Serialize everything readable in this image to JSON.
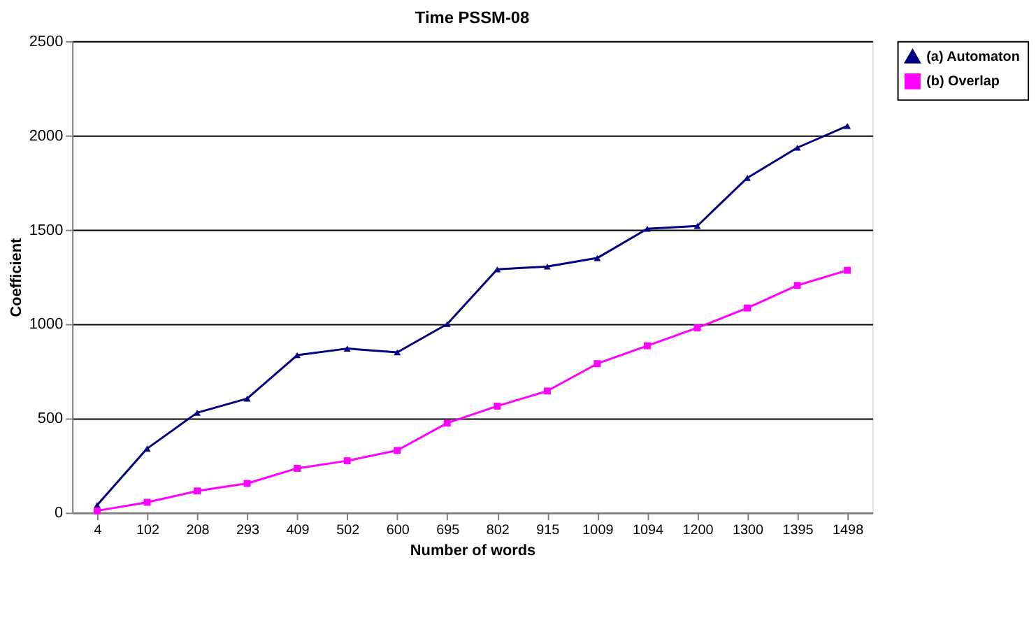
{
  "chart_data": {
    "type": "line",
    "title": "Time PSSM-08",
    "xlabel": "Number of words",
    "ylabel": "Coefficient",
    "categories": [
      "4",
      "102",
      "208",
      "293",
      "409",
      "502",
      "600",
      "695",
      "802",
      "915",
      "1009",
      "1094",
      "1200",
      "1300",
      "1395",
      "1498"
    ],
    "series": [
      {
        "name": "(a) Automaton",
        "color": "#000080",
        "marker": "triangle",
        "values": [
          40,
          340,
          530,
          605,
          835,
          870,
          850,
          1000,
          1290,
          1305,
          1350,
          1505,
          1520,
          1775,
          1935,
          2050
        ]
      },
      {
        "name": "(b) Overlap",
        "color": "#ff00ff",
        "marker": "square",
        "values": [
          10,
          55,
          115,
          155,
          235,
          275,
          330,
          475,
          565,
          645,
          790,
          885,
          980,
          1085,
          1205,
          1285
        ]
      }
    ],
    "ylim": [
      0,
      2500
    ],
    "yticks": [
      0,
      500,
      1000,
      1500,
      2000,
      2500
    ],
    "grid": "y",
    "legend": "right"
  }
}
